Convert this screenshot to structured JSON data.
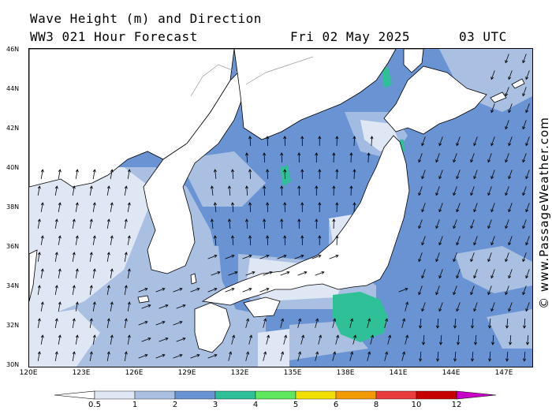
{
  "header": {
    "title": "Wave Height (m) and Direction",
    "model_run": "WW3 021 Hour Forecast",
    "date": "Fri 02 May 2025",
    "time": "03 UTC"
  },
  "credit": "© www.PassageWeather.com",
  "lat_labels": [
    "46N",
    "44N",
    "42N",
    "40N",
    "38N",
    "36N",
    "34N",
    "32N",
    "30N"
  ],
  "lon_labels": [
    "120E",
    "123E",
    "126E",
    "129E",
    "132E",
    "135E",
    "138E",
    "141E",
    "144E",
    "147E"
  ],
  "colorbar": {
    "labels": [
      "0.5",
      "1",
      "2",
      "3",
      "4",
      "5",
      "6",
      "8",
      "10",
      "12"
    ],
    "colors": [
      "#dfe7f4",
      "#a9c0e3",
      "#6a93d3",
      "#2fc098",
      "#5ee85e",
      "#f2e100",
      "#f39a00",
      "#ea3c3c",
      "#c80000",
      "#c800c8"
    ]
  },
  "map_colors": {
    "land": "#ffffff",
    "coast": "#000000",
    "border": "#9a9a9a",
    "arrow": "#000000"
  }
}
